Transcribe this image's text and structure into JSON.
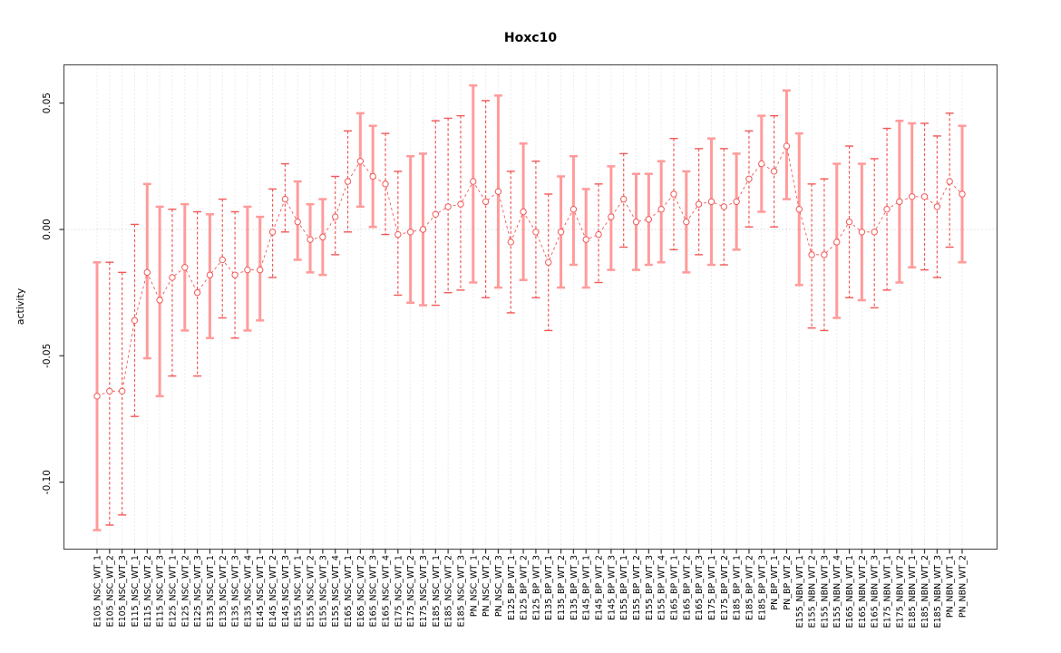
{
  "title": "Hoxc10",
  "chart_data": {
    "type": "scatter",
    "title": "Hoxc10",
    "xlabel": "",
    "ylabel": "activity",
    "ylim": [
      -0.126,
      0.065
    ],
    "yticks": [
      0.05,
      0.0,
      -0.05,
      -0.1
    ],
    "ytick_labels": [
      "0.05",
      "0.00",
      "-0.05",
      "-0.10"
    ],
    "grid": "vertical dotted gridline per category; dotted horizontal line at y=0",
    "legend_position": "none",
    "point_marker": "open-circle",
    "line_style": "dashed connector between consecutive points",
    "error_bars": "95% CI whiskers with end caps",
    "categories": [
      "E105_NSC_WT_1",
      "E105_NSC_WT_2",
      "E105_NSC_WT_3",
      "E115_NSC_WT_1",
      "E115_NSC_WT_2",
      "E115_NSC_WT_3",
      "E125_NSC_WT_1",
      "E125_NSC_WT_2",
      "E125_NSC_WT_3",
      "E135_NSC_WT_1",
      "E135_NSC_WT_2",
      "E135_NSC_WT_3",
      "E135_NSC_WT_4",
      "E145_NSC_WT_1",
      "E145_NSC_WT_2",
      "E145_NSC_WT_3",
      "E155_NSC_WT_1",
      "E155_NSC_WT_2",
      "E155_NSC_WT_3",
      "E155_NSC_WT_4",
      "E165_NSC_WT_1",
      "E165_NSC_WT_2",
      "E165_NSC_WT_3",
      "E165_NSC_WT_4",
      "E175_NSC_WT_1",
      "E175_NSC_WT_2",
      "E175_NSC_WT_3",
      "E185_NSC_WT_1",
      "E185_NSC_WT_2",
      "E185_NSC_WT_3",
      "PN_NSC_WT_1",
      "PN_NSC_WT_2",
      "PN_NSC_WT_3",
      "E125_BP_WT_1",
      "E125_BP_WT_2",
      "E125_BP_WT_3",
      "E135_BP_WT_1",
      "E135_BP_WT_2",
      "E135_BP_WT_3",
      "E145_BP_WT_1",
      "E145_BP_WT_2",
      "E145_BP_WT_3",
      "E155_BP_WT_1",
      "E155_BP_WT_2",
      "E155_BP_WT_3",
      "E155_BP_WT_4",
      "E165_BP_WT_1",
      "E165_BP_WT_2",
      "E165_BP_WT_3",
      "E175_BP_WT_1",
      "E175_BP_WT_2",
      "E185_BP_WT_1",
      "E185_BP_WT_2",
      "E185_BP_WT_3",
      "PN_BP_WT_1",
      "PN_BP_WT_2",
      "E155_NBN_WT_1",
      "E155_NBN_WT_2",
      "E155_NBN_WT_3",
      "E155_NBN_WT_4",
      "E165_NBN_WT_1",
      "E165_NBN_WT_2",
      "E165_NBN_WT_3",
      "E175_NBN_WT_1",
      "E175_NBN_WT_2",
      "E185_NBN_WT_1",
      "E185_NBN_WT_2",
      "E185_NBN_WT_3",
      "PN_NBN_WT_1",
      "PN_NBN_WT_2"
    ],
    "series": [
      {
        "name": "activity",
        "values": [
          -0.066,
          -0.064,
          -0.064,
          -0.036,
          -0.017,
          -0.028,
          -0.019,
          -0.015,
          -0.025,
          -0.018,
          -0.012,
          -0.018,
          -0.016,
          -0.016,
          -0.001,
          0.012,
          0.003,
          -0.004,
          -0.003,
          0.005,
          0.019,
          0.027,
          0.021,
          0.018,
          -0.002,
          -0.001,
          0.0,
          0.006,
          0.009,
          0.01,
          0.019,
          0.011,
          0.015,
          -0.005,
          0.007,
          -0.001,
          -0.013,
          -0.001,
          0.008,
          -0.004,
          -0.002,
          0.005,
          0.012,
          0.003,
          0.004,
          0.008,
          0.014,
          0.003,
          0.01,
          0.011,
          0.009,
          0.011,
          0.02,
          0.026,
          0.023,
          0.033,
          0.008,
          -0.01,
          -0.01,
          -0.005,
          0.003,
          -0.001,
          -0.001,
          0.008,
          0.011,
          0.013,
          0.013,
          0.009,
          0.019,
          0.014
        ],
        "ci_low": [
          -0.119,
          -0.117,
          -0.113,
          -0.074,
          -0.051,
          -0.066,
          -0.058,
          -0.04,
          -0.058,
          -0.043,
          -0.035,
          -0.043,
          -0.04,
          -0.036,
          -0.019,
          -0.001,
          -0.012,
          -0.017,
          -0.018,
          -0.01,
          -0.001,
          0.009,
          0.001,
          -0.002,
          -0.026,
          -0.029,
          -0.03,
          -0.03,
          -0.025,
          -0.024,
          -0.021,
          -0.027,
          -0.023,
          -0.033,
          -0.02,
          -0.027,
          -0.04,
          -0.023,
          -0.014,
          -0.023,
          -0.021,
          -0.016,
          -0.007,
          -0.016,
          -0.014,
          -0.013,
          -0.008,
          -0.017,
          -0.01,
          -0.014,
          -0.014,
          -0.008,
          0.001,
          0.007,
          0.001,
          0.012,
          -0.022,
          -0.039,
          -0.04,
          -0.035,
          -0.027,
          -0.028,
          -0.031,
          -0.024,
          -0.021,
          -0.015,
          -0.016,
          -0.019,
          -0.007,
          -0.013
        ],
        "ci_high": [
          -0.013,
          -0.013,
          -0.017,
          0.002,
          0.018,
          0.009,
          0.008,
          0.01,
          0.007,
          0.006,
          0.012,
          0.007,
          0.009,
          0.005,
          0.016,
          0.026,
          0.019,
          0.01,
          0.012,
          0.021,
          0.039,
          0.046,
          0.041,
          0.038,
          0.023,
          0.029,
          0.03,
          0.043,
          0.044,
          0.045,
          0.057,
          0.051,
          0.053,
          0.023,
          0.034,
          0.027,
          0.014,
          0.021,
          0.029,
          0.016,
          0.018,
          0.025,
          0.03,
          0.022,
          0.022,
          0.027,
          0.036,
          0.023,
          0.032,
          0.036,
          0.032,
          0.03,
          0.039,
          0.045,
          0.045,
          0.055,
          0.038,
          0.018,
          0.02,
          0.026,
          0.033,
          0.026,
          0.028,
          0.04,
          0.043,
          0.042,
          0.042,
          0.037,
          0.046,
          0.041
        ]
      }
    ],
    "bar_styles": [
      "light",
      "dark",
      "dark",
      "dark",
      "light",
      "light",
      "dark",
      "light",
      "dark",
      "light",
      "dark",
      "dark",
      "light",
      "light",
      "dark",
      "dark",
      "light",
      "light",
      "light",
      "dark",
      "dark",
      "light",
      "light",
      "dark",
      "dark",
      "light",
      "light",
      "dark",
      "dark",
      "dark",
      "light",
      "dark",
      "light",
      "dark",
      "light",
      "dark",
      "dark",
      "light",
      "light",
      "light",
      "dark",
      "light",
      "dark",
      "light",
      "light",
      "light",
      "dark",
      "light",
      "dark",
      "light",
      "dark",
      "light",
      "dark",
      "light",
      "dark",
      "light",
      "light",
      "dark",
      "dark",
      "light",
      "dark",
      "light",
      "dark",
      "dark",
      "light",
      "light",
      "dark",
      "dark",
      "dark",
      "light"
    ],
    "colors": {
      "point": "#f25858",
      "connector": "#f25858",
      "error_bar_light": "#ff9b9b",
      "error_bar_dark": "#f25858",
      "grid": "#d9d9d9",
      "zero_line": "#cccccc",
      "box": "#555555",
      "tick": "#333333",
      "text": "#000000",
      "background": "#ffffff"
    }
  }
}
